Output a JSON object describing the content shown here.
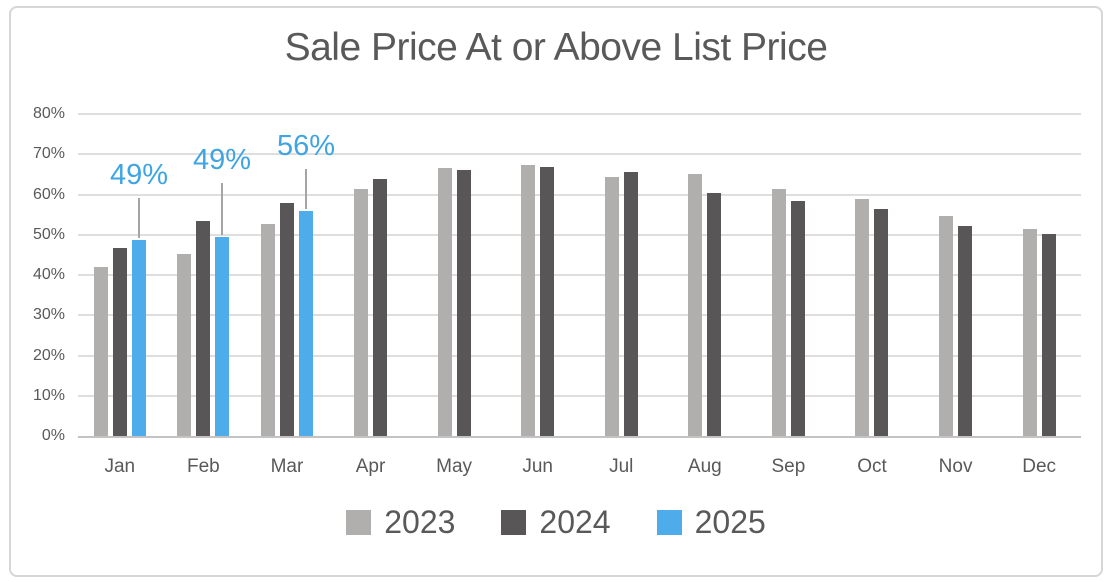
{
  "chart_data": {
    "type": "bar",
    "title": "Sale Price At or Above List Price",
    "categories": [
      "Jan",
      "Feb",
      "Mar",
      "Apr",
      "May",
      "Jun",
      "Jul",
      "Aug",
      "Sep",
      "Oct",
      "Nov",
      "Dec"
    ],
    "series": [
      {
        "name": "2023",
        "color": "#b1aeae",
        "values": [
          42.1,
          45.2,
          52.7,
          61.4,
          66.6,
          67.3,
          64.3,
          65.0,
          61.4,
          59.0,
          54.7,
          51.5
        ]
      },
      {
        "name": "2024",
        "color": "#585657",
        "values": [
          46.6,
          53.4,
          57.8,
          63.9,
          66.1,
          66.8,
          65.6,
          60.3,
          58.4,
          56.5,
          52.2,
          50.3
        ]
      },
      {
        "name": "2025",
        "color": "#4dace9",
        "values": [
          48.7,
          49.4,
          55.8,
          null,
          null,
          null,
          null,
          null,
          null,
          null,
          null,
          null
        ]
      }
    ],
    "annotations": [
      {
        "series": "2025",
        "category": "Jan",
        "label": "49%",
        "line_length": 40
      },
      {
        "series": "2025",
        "category": "Feb",
        "label": "49%",
        "line_length": 52
      },
      {
        "series": "2025",
        "category": "Mar",
        "label": "56%",
        "line_length": 40
      }
    ],
    "y_axis": {
      "min": 0,
      "max": 80,
      "step": 10,
      "unit": "%",
      "grid": true,
      "ticks_top_down": [
        "80%",
        "70%",
        "60%",
        "50%",
        "40%",
        "30%",
        "20%",
        "10%",
        "0%"
      ]
    },
    "legend": {
      "position": "bottom",
      "labels": [
        "2023",
        "2024",
        "2025"
      ]
    },
    "style": {
      "text_color": "#595959",
      "gridline_color": "#dedede",
      "axis_line_color": "#c3c3c3",
      "annotation_text_color": "#3fa5e2",
      "leader_line_color": "#a5a5a5"
    }
  }
}
